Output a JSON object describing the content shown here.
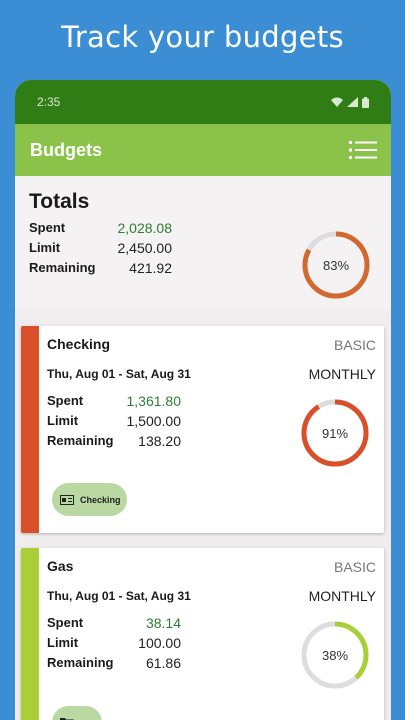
{
  "promo_title": "Track your budgets",
  "status": {
    "time": "2:35"
  },
  "appbar": {
    "title": "Budgets",
    "menu_icon": "list-icon"
  },
  "totals": {
    "heading": "Totals",
    "spent_label": "Spent",
    "spent": "2,028.08",
    "limit_label": "Limit",
    "limit": "2,450.00",
    "remaining_label": "Remaining",
    "remaining": "421.92",
    "percent_label": "83%",
    "percent": 0.83,
    "ring_color": "#d2692e"
  },
  "budgets": [
    {
      "name": "Checking",
      "type": "BASIC",
      "dates": "Thu, Aug 01 - Sat, Aug 31",
      "period": "MONTHLY",
      "spent_label": "Spent",
      "spent": "1,361.80",
      "limit_label": "Limit",
      "limit": "1,500.00",
      "remaining_label": "Remaining",
      "remaining": "138.20",
      "percent_label": "91%",
      "percent": 0.91,
      "stripe_color": "#d84f2a",
      "ring_color": "#d84f2a",
      "chip_label": "Checking",
      "chip_icon": "account-card-icon"
    },
    {
      "name": "Gas",
      "type": "BASIC",
      "dates": "Thu, Aug 01 - Sat, Aug 31",
      "period": "MONTHLY",
      "spent_label": "Spent",
      "spent": "38.14",
      "limit_label": "Limit",
      "limit": "100.00",
      "remaining_label": "Remaining",
      "remaining": "61.86",
      "percent_label": "38%",
      "percent": 0.38,
      "stripe_color": "#a9cf38",
      "ring_color": "#a9cf38"
    }
  ]
}
